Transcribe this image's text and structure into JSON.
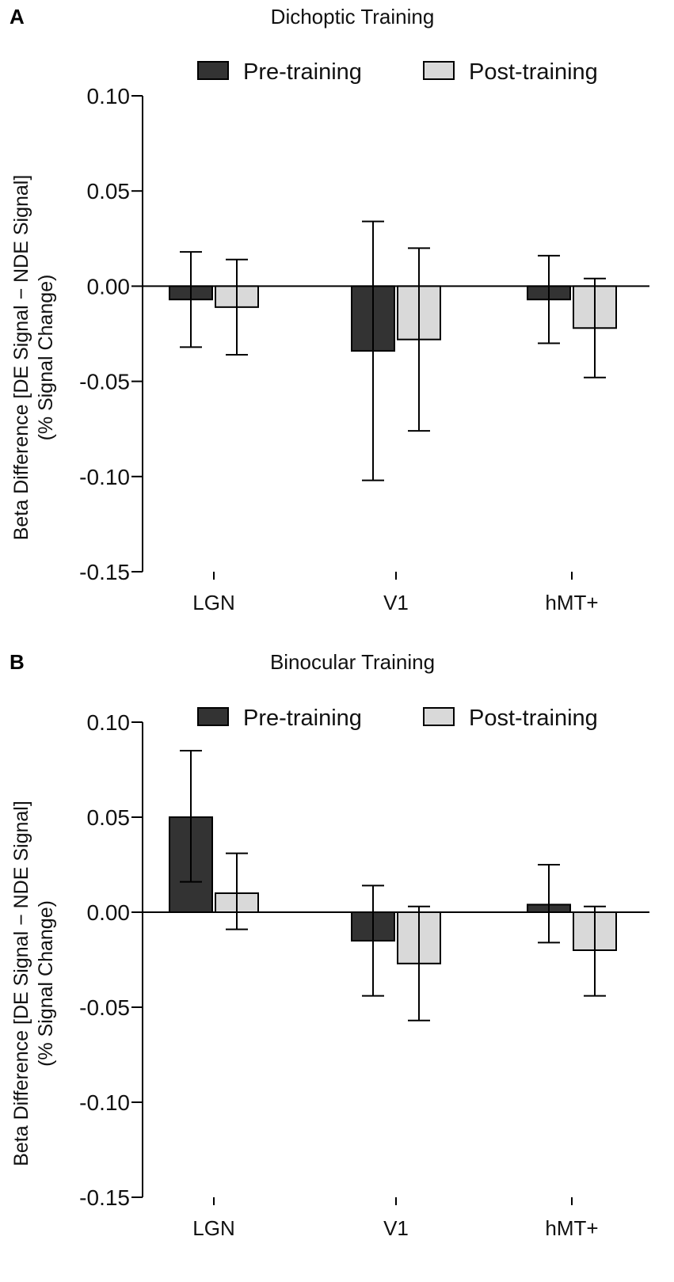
{
  "chart_data": [
    {
      "type": "bar",
      "panel": "A",
      "title": "Dichoptic Training",
      "ylabel_line1": "Beta Difference [DE Signal − NDE Signal]",
      "ylabel_line2": "(% Signal Change)",
      "xlabel": "",
      "ylim": [
        -0.15,
        0.1
      ],
      "yticks": [
        0.1,
        0.05,
        0.0,
        -0.05,
        -0.1,
        -0.15
      ],
      "ytick_labels": [
        "0.10",
        "0.05",
        "0.00",
        "-0.05",
        "-0.10",
        "-0.15"
      ],
      "categories": [
        "LGN",
        "V1",
        "hMT+"
      ],
      "legend_position": "top",
      "series": [
        {
          "name": "Pre-training",
          "color": "#333333",
          "values": [
            -0.007,
            -0.034,
            -0.007
          ],
          "error_upper": [
            0.018,
            0.034,
            0.016
          ],
          "error_lower": [
            -0.032,
            -0.102,
            -0.03
          ]
        },
        {
          "name": "Post-training",
          "color": "#d9d9d9",
          "values": [
            -0.011,
            -0.028,
            -0.022
          ],
          "error_upper": [
            0.014,
            0.02,
            0.004
          ],
          "error_lower": [
            -0.036,
            -0.076,
            -0.048
          ]
        }
      ]
    },
    {
      "type": "bar",
      "panel": "B",
      "title": "Binocular Training",
      "ylabel_line1": "Beta Difference [DE Signal − NDE Signal]",
      "ylabel_line2": "(% Signal Change)",
      "xlabel": "",
      "ylim": [
        -0.15,
        0.1
      ],
      "yticks": [
        0.1,
        0.05,
        0.0,
        -0.05,
        -0.1,
        -0.15
      ],
      "ytick_labels": [
        "0.10",
        "0.05",
        "0.00",
        "-0.05",
        "-0.10",
        "-0.15"
      ],
      "categories": [
        "LGN",
        "V1",
        "hMT+"
      ],
      "legend_position": "top",
      "series": [
        {
          "name": "Pre-training",
          "color": "#333333",
          "values": [
            0.05,
            -0.015,
            0.004
          ],
          "error_upper": [
            0.085,
            0.014,
            0.025
          ],
          "error_lower": [
            0.016,
            -0.044,
            -0.016
          ]
        },
        {
          "name": "Post-training",
          "color": "#d9d9d9",
          "values": [
            0.01,
            -0.027,
            -0.02
          ],
          "error_upper": [
            0.031,
            0.003,
            0.003
          ],
          "error_lower": [
            -0.009,
            -0.057,
            -0.044
          ]
        }
      ]
    }
  ]
}
